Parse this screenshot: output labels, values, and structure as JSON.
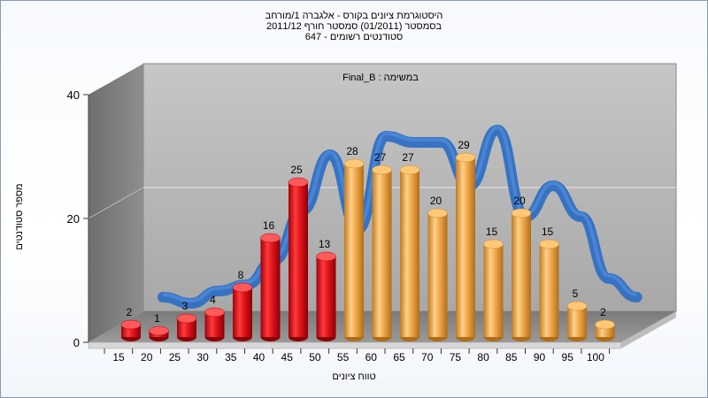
{
  "title_lines": [
    "היסטוגרמת ציונים בקורס - אלגברה 1/מורחב",
    "בסמסטר  (01/2011)  סמסטר חורף  2011/12",
    "647 - סטודנטים רשומים"
  ],
  "chart_data": {
    "type": "bar",
    "subtitle": "Final_B : במשימה",
    "xlabel": "טווח ציונים",
    "ylabel": "מספר סטודנטים",
    "ylim": [
      0,
      40
    ],
    "yticks": [
      0,
      20,
      40
    ],
    "grid": true,
    "categories": [
      "15",
      "20",
      "25",
      "30",
      "35",
      "40",
      "45",
      "50",
      "55",
      "60",
      "65",
      "70",
      "75",
      "80",
      "85",
      "90",
      "95",
      "100"
    ],
    "values": [
      2,
      1,
      3,
      4,
      8,
      16,
      25,
      13,
      28,
      27,
      27,
      20,
      29,
      15,
      20,
      15,
      5,
      2
    ],
    "data_labels": [
      "2",
      "1",
      "3",
      "4",
      "8",
      "16",
      "25",
      "13",
      "28",
      "27",
      "27",
      "20",
      "29",
      "15",
      "20",
      "15",
      "5",
      "2"
    ],
    "fail_color": "#e0141c",
    "pass_color": "#f0a84a",
    "fail_count": 8,
    "trend_color": "#2f6fc2"
  }
}
